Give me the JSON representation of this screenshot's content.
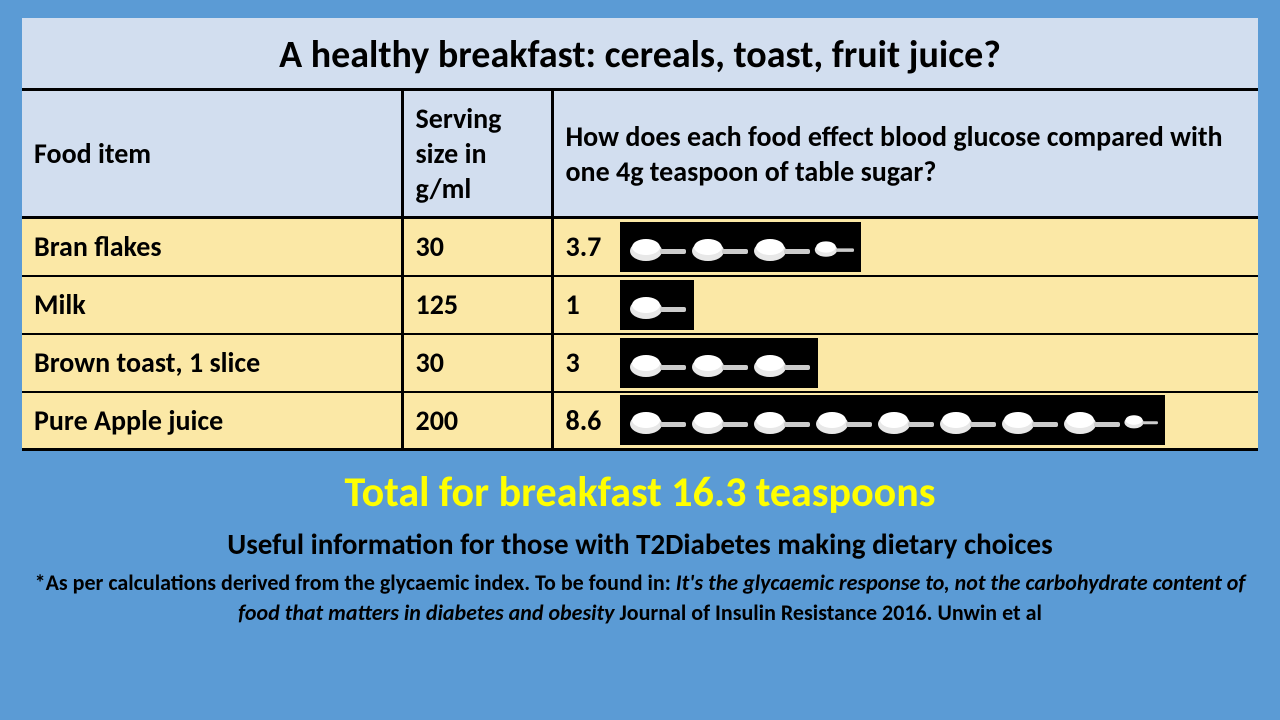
{
  "title": "A healthy breakfast: cereals, toast, fruit juice?",
  "columns": {
    "food": "Food item",
    "size": "Serving size in g/ml",
    "effect": "How does each food effect blood glucose compared with one 4g teaspoon of table sugar?"
  },
  "rows": [
    {
      "food": "Bran flakes",
      "size": "30",
      "teaspoons": "3.7",
      "spoon_count": 3.7
    },
    {
      "food": "Milk",
      "size": "125",
      "teaspoons": "1",
      "spoon_count": 1
    },
    {
      "food": "Brown toast, 1 slice",
      "size": "30",
      "teaspoons": "3",
      "spoon_count": 3
    },
    {
      "food": "Pure Apple juice",
      "size": "200",
      "teaspoons": "8.6",
      "spoon_count": 8.6
    }
  ],
  "total_line": "Total for breakfast  16.3 teaspoons",
  "subtitle": "Useful information for those with T2Diabetes making dietary choices",
  "footnote_prefix": "*As per calculations derived from the glycaemic index. To be found in: ",
  "footnote_italic": "It's the glycaemic response to, not the carbohydrate content of food that matters in diabetes and obesity",
  "footnote_suffix": "  Journal of Insulin Resistance 2016. Unwin et al",
  "colors": {
    "page_bg": "#5b9bd5",
    "header_bg": "#d2deef",
    "row_bg": "#fbe8a6",
    "spoon_bg": "#000000",
    "total_color": "#ffff00"
  },
  "spoon_icon": {
    "bowl_fill": "#e8e8e8",
    "sugar_fill": "#ffffff",
    "handle_fill": "#cccccc"
  }
}
